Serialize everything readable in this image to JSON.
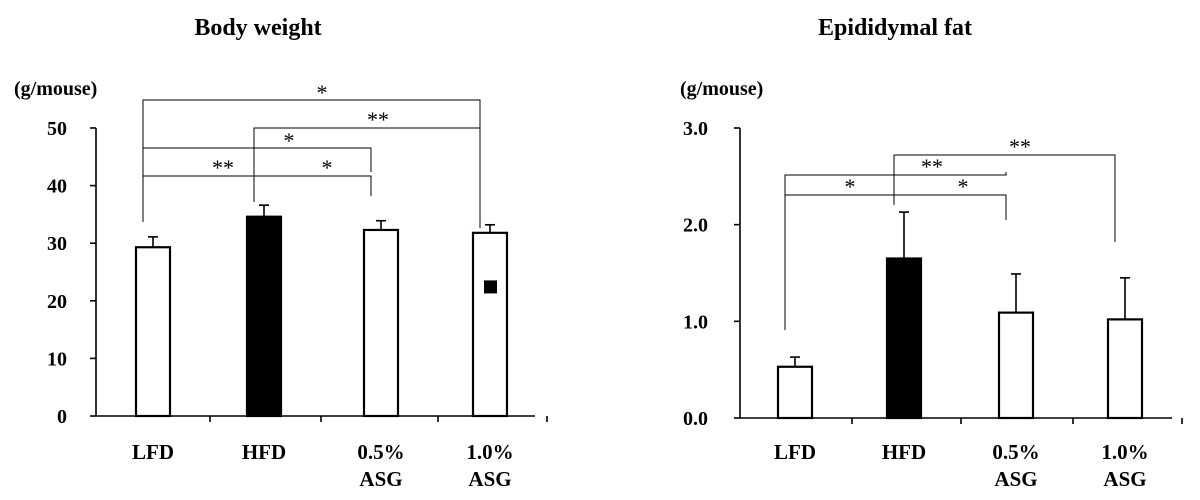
{
  "chart_data": [
    {
      "type": "bar",
      "title": "Body weight",
      "ylabel": "(g/mouse)",
      "ylim": [
        0,
        50
      ],
      "yticks": [
        "0",
        "10",
        "20",
        "30",
        "40",
        "50"
      ],
      "yticks_values": [
        0,
        10,
        20,
        30,
        40,
        50
      ],
      "categories": [
        [
          "LFD"
        ],
        [
          "HFD"
        ],
        [
          "0.5%",
          "ASG"
        ],
        [
          "1.0%",
          "ASG"
        ]
      ],
      "values": [
        29.3,
        34.6,
        32.3,
        31.8
      ],
      "errors": [
        1.8,
        2.0,
        1.6,
        1.4
      ],
      "fills": [
        "#ffffff",
        "#000000",
        "#ffffff",
        "#ffffff"
      ],
      "significance": [
        {
          "from": 0,
          "to": 3,
          "label": "*"
        },
        {
          "from": 1,
          "to": 3,
          "label": "**"
        },
        {
          "from": 0,
          "to": 2,
          "label": "*"
        },
        {
          "from": 0,
          "to": 1,
          "label": "**"
        },
        {
          "from": 1,
          "to": 2,
          "label": "*"
        }
      ],
      "marker": {
        "category": 3,
        "value": 22.5,
        "shape": "filled-square"
      }
    },
    {
      "type": "bar",
      "title": "Epididymal fat",
      "ylabel": "(g/mouse)",
      "ylim": [
        0,
        3.0
      ],
      "yticks": [
        "0.0",
        "1.0",
        "2.0",
        "3.0"
      ],
      "yticks_values": [
        0,
        1,
        2,
        3
      ],
      "categories": [
        [
          "LFD"
        ],
        [
          "HFD"
        ],
        [
          "0.5%",
          "ASG"
        ],
        [
          "1.0%",
          "ASG"
        ]
      ],
      "values": [
        0.53,
        1.65,
        1.09,
        1.02
      ],
      "errors": [
        0.1,
        0.48,
        0.4,
        0.43
      ],
      "fills": [
        "#ffffff",
        "#000000",
        "#ffffff",
        "#ffffff"
      ],
      "significance": [
        {
          "from": 1,
          "to": 3,
          "label": "**"
        },
        {
          "from": 0,
          "to": 2,
          "label": "**"
        },
        {
          "from": 0,
          "to": 1,
          "label": "*"
        },
        {
          "from": 1,
          "to": 2,
          "label": "*"
        }
      ]
    }
  ]
}
